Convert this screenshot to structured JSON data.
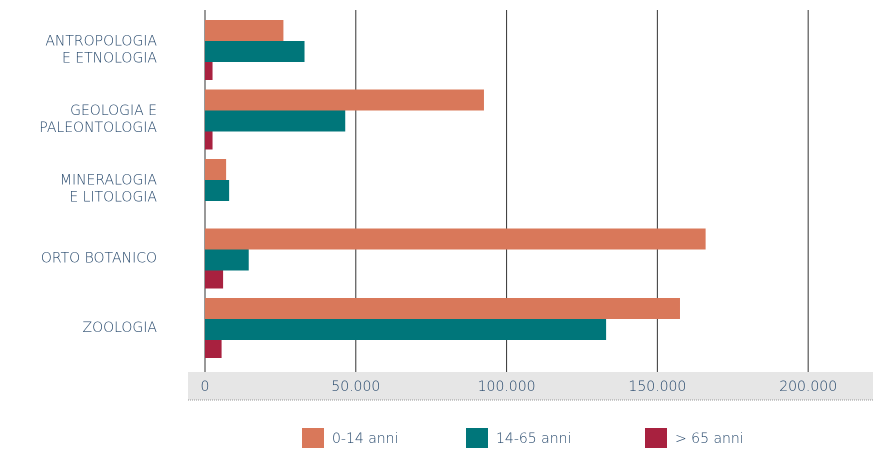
{
  "chart_data": {
    "type": "bar",
    "orientation": "horizontal",
    "categories": [
      "ANTROPOLOGIA\nE ETNOLOGIA",
      "GEOLOGIA E\nPALEONTOLOGIA",
      "MINERALOGIA\nE LITOLOGIA",
      "ORTO BOTANICO",
      "ZOOLOGIA"
    ],
    "series": [
      {
        "name": "0-14 anni",
        "color": "#d9785a",
        "values": [
          26000,
          92500,
          7000,
          166000,
          157500
        ]
      },
      {
        "name": "14-65 anni",
        "color": "#00767a",
        "values": [
          33000,
          46500,
          8000,
          14500,
          133000
        ]
      },
      {
        "name": "> 65 anni",
        "color": "#a8213f",
        "values": [
          2500,
          2500,
          0,
          6000,
          5500
        ]
      }
    ],
    "xlim": [
      0,
      221500
    ],
    "xticks": [
      0,
      {
        "value": 50000,
        "label": "50.000"
      },
      {
        "value": 100000,
        "label": "100.000"
      },
      {
        "value": 150000,
        "label": "150.000"
      },
      {
        "value": 200000,
        "label": "200.000"
      }
    ],
    "grid": true,
    "legend": "bottom"
  }
}
